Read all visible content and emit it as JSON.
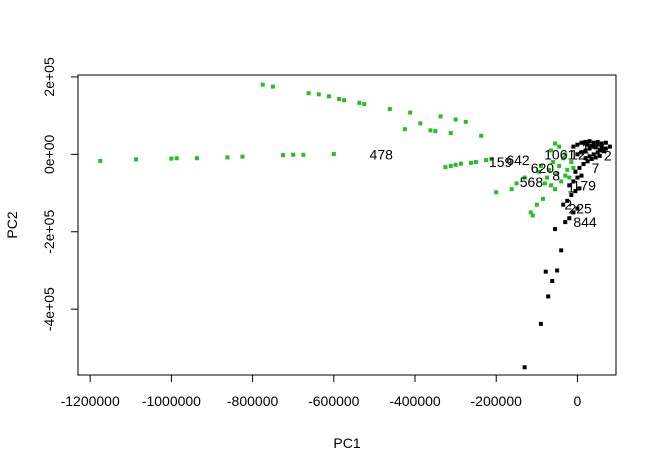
{
  "chart_data": {
    "type": "scatter",
    "title": "",
    "xlabel": "PC1",
    "ylabel": "PC2",
    "xlim": [
      -1230000,
      95000
    ],
    "ylim": [
      -570000,
      205000
    ],
    "x_ticks": [
      -1200000,
      -1000000,
      -800000,
      -600000,
      -400000,
      -200000,
      0
    ],
    "x_tick_labels": [
      "-1200000",
      "-1000000",
      "-800000",
      "-600000",
      "-400000",
      "-200000",
      "0"
    ],
    "y_ticks": [
      200000,
      0,
      -200000,
      -400000
    ],
    "y_tick_labels": [
      "2e+05",
      "0e+00",
      "-2e+05",
      "-4e+05"
    ],
    "grid": false,
    "series": [
      {
        "color": "#22c022",
        "points": [
          [
            -1175000,
            -17000
          ],
          [
            -1087000,
            -13000
          ],
          [
            -1000000,
            -11000
          ],
          [
            -987000,
            -10000
          ],
          [
            -937000,
            -10000
          ],
          [
            -862000,
            -8000
          ],
          [
            -825000,
            -6000
          ],
          [
            -775000,
            180000
          ],
          [
            -750000,
            175000
          ],
          [
            -725000,
            -2000
          ],
          [
            -700000,
            -1000
          ],
          [
            -675000,
            -1000
          ],
          [
            -662000,
            158000
          ],
          [
            -637000,
            155000
          ],
          [
            -612000,
            150000
          ],
          [
            -600000,
            1000
          ],
          [
            -587000,
            143000
          ],
          [
            -575000,
            140000
          ],
          [
            -537000,
            133000
          ],
          [
            -525000,
            130000
          ],
          [
            -462000,
            117000
          ],
          [
            -412000,
            108000
          ],
          [
            -425000,
            65000
          ],
          [
            -387000,
            80000
          ],
          [
            -362000,
            62000
          ],
          [
            -350000,
            60000
          ],
          [
            -337000,
            98000
          ],
          [
            -312000,
            55000
          ],
          [
            -300000,
            90000
          ],
          [
            -275000,
            84000
          ],
          [
            -237000,
            48000
          ],
          [
            -325000,
            -33000
          ],
          [
            -312000,
            -30000
          ],
          [
            -300000,
            -27000
          ],
          [
            -287000,
            -24000
          ],
          [
            -262000,
            -22000
          ],
          [
            -250000,
            -20000
          ],
          [
            -225000,
            -15000
          ],
          [
            -212000,
            -12000
          ],
          [
            -200000,
            -98000
          ],
          [
            -162000,
            -90000
          ],
          [
            -150000,
            -75000
          ],
          [
            -130000,
            -60000
          ],
          [
            -115000,
            -150000
          ],
          [
            -110000,
            -158000
          ],
          [
            -100000,
            -130000
          ],
          [
            -95000,
            -45000
          ],
          [
            -90000,
            -30000
          ],
          [
            -85000,
            -115000
          ],
          [
            -80000,
            -75000
          ],
          [
            -75000,
            -60000
          ],
          [
            -70000,
            -40000
          ],
          [
            -65000,
            -80000
          ],
          [
            -60000,
            -20000
          ],
          [
            -55000,
            -90000
          ],
          [
            -50000,
            -50000
          ],
          [
            -45000,
            -30000
          ],
          [
            -40000,
            -70000
          ],
          [
            -35000,
            -10000
          ],
          [
            -30000,
            -55000
          ],
          [
            -25000,
            -40000
          ],
          [
            -20000,
            -60000
          ],
          [
            -15000,
            -20000
          ],
          [
            -10000,
            -35000
          ],
          [
            -55000,
            28000
          ],
          [
            -45000,
            20000
          ],
          [
            -65000,
            10000
          ],
          [
            -30000,
            0
          ]
        ]
      },
      {
        "color": "#000000",
        "points": [
          [
            -130000,
            -550000
          ],
          [
            -90000,
            -438000
          ],
          [
            -72000,
            -367000
          ],
          [
            -62000,
            -327000
          ],
          [
            -78000,
            -303000
          ],
          [
            -50000,
            -300000
          ],
          [
            -40000,
            -248000
          ],
          [
            -55000,
            -193000
          ],
          [
            -30000,
            -175000
          ],
          [
            -20000,
            -165000
          ],
          [
            -10000,
            -150000
          ],
          [
            0,
            -140000
          ],
          [
            -35000,
            -130000
          ],
          [
            -25000,
            -120000
          ],
          [
            -15000,
            -105000
          ],
          [
            -5000,
            -95000
          ],
          [
            5000,
            -88000
          ],
          [
            -20000,
            -80000
          ],
          [
            -10000,
            -70000
          ],
          [
            0,
            -60000
          ],
          [
            10000,
            -55000
          ],
          [
            -5000,
            -45000
          ],
          [
            5000,
            -35000
          ],
          [
            15000,
            -25000
          ],
          [
            25000,
            -18000
          ],
          [
            35000,
            -12000
          ],
          [
            45000,
            -8000
          ],
          [
            55000,
            -4000
          ],
          [
            0,
            0
          ],
          [
            10000,
            5000
          ],
          [
            20000,
            10000
          ],
          [
            30000,
            15000
          ],
          [
            40000,
            20000
          ],
          [
            50000,
            25000
          ],
          [
            60000,
            28000
          ],
          [
            70000,
            30000
          ],
          [
            15000,
            30000
          ],
          [
            25000,
            25000
          ],
          [
            35000,
            22000
          ],
          [
            45000,
            18000
          ],
          [
            55000,
            12000
          ],
          [
            65000,
            8000
          ],
          [
            20000,
            -10000
          ],
          [
            30000,
            -5000
          ],
          [
            40000,
            0
          ],
          [
            50000,
            5000
          ],
          [
            60000,
            10000
          ],
          [
            70000,
            15000
          ],
          [
            80000,
            20000
          ],
          [
            -10000,
            20000
          ],
          [
            0,
            25000
          ],
          [
            10000,
            30000
          ],
          [
            20000,
            32000
          ],
          [
            30000,
            34000
          ],
          [
            40000,
            30000
          ],
          [
            50000,
            32000
          ],
          [
            60000,
            20000
          ]
        ]
      }
    ],
    "annotations": [
      {
        "text": "478",
        "x": -512000,
        "y": 0
      },
      {
        "text": "159",
        "x": -218000,
        "y": -20000
      },
      {
        "text": "642",
        "x": -175000,
        "y": -15000
      },
      {
        "text": "620",
        "x": -115000,
        "y": -35000
      },
      {
        "text": "568",
        "x": -142000,
        "y": -72000
      },
      {
        "text": "1061",
        "x": -82000,
        "y": 0
      },
      {
        "text": "8",
        "x": -62000,
        "y": -55000
      },
      {
        "text": "12",
        "x": -18000,
        "y": 0
      },
      {
        "text": "7",
        "x": 35000,
        "y": -35000
      },
      {
        "text": "2",
        "x": 65000,
        "y": -3000
      },
      {
        "text": "1",
        "x": 10000,
        "y": 15000
      },
      {
        "text": "179",
        "x": -12000,
        "y": -80000
      },
      {
        "text": "1",
        "x": -25000,
        "y": -85000
      },
      {
        "text": "2",
        "x": -32000,
        "y": -130000
      },
      {
        "text": "225",
        "x": -22000,
        "y": -140000
      },
      {
        "text": "844",
        "x": -10000,
        "y": -175000
      }
    ]
  }
}
